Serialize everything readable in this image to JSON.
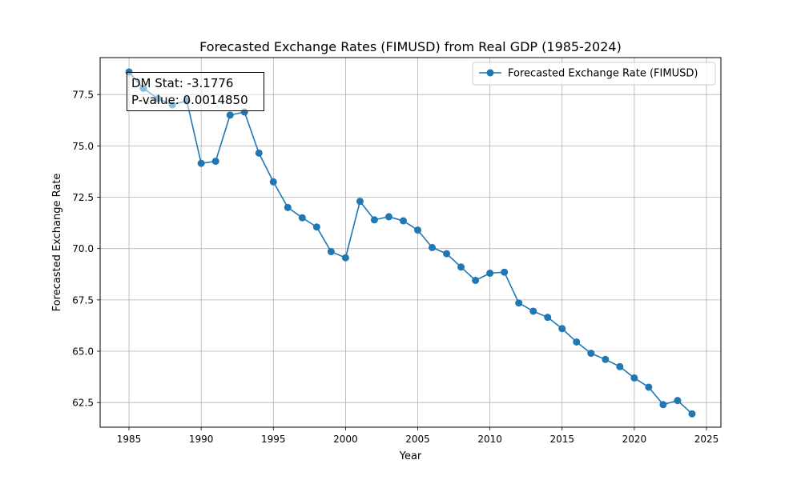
{
  "chart_data": {
    "type": "line",
    "title": "Forecasted Exchange Rates (FIMUSD) from Real GDP (1985-2024)",
    "xlabel": "Year",
    "ylabel": "Forecasted Exchange Rate",
    "xlim": [
      1983,
      2026
    ],
    "ylim": [
      61.3,
      79.3
    ],
    "x_ticks": [
      1985,
      1990,
      1995,
      2000,
      2005,
      2010,
      2015,
      2020,
      2025
    ],
    "y_ticks": [
      62.5,
      65.0,
      67.5,
      70.0,
      72.5,
      75.0,
      77.5
    ],
    "grid": true,
    "legend_position": "upper right",
    "color": "#1f77b4",
    "series": [
      {
        "name": "Forecasted Exchange Rate (FIMUSD)",
        "x": [
          1985,
          1986,
          1987,
          1988,
          1989,
          1990,
          1991,
          1992,
          1993,
          1994,
          1995,
          1996,
          1997,
          1998,
          1999,
          2000,
          2001,
          2002,
          2003,
          2004,
          2005,
          2006,
          2007,
          2008,
          2009,
          2010,
          2011,
          2012,
          2013,
          2014,
          2015,
          2016,
          2017,
          2018,
          2019,
          2020,
          2021,
          2022,
          2023,
          2024
        ],
        "values": [
          78.6,
          77.8,
          77.3,
          77.0,
          77.2,
          74.15,
          74.25,
          76.5,
          76.65,
          74.65,
          73.25,
          72.0,
          71.5,
          71.05,
          69.85,
          69.55,
          72.3,
          71.4,
          71.55,
          71.35,
          70.9,
          70.05,
          69.75,
          69.1,
          68.45,
          68.8,
          68.85,
          67.35,
          66.95,
          66.65,
          66.1,
          65.45,
          64.9,
          64.6,
          64.25,
          63.7,
          63.25,
          62.4,
          62.6,
          61.95
        ]
      }
    ],
    "annotation": {
      "line1": "DM Stat: -3.1776",
      "line2": "P-value: 0.0014850"
    }
  }
}
